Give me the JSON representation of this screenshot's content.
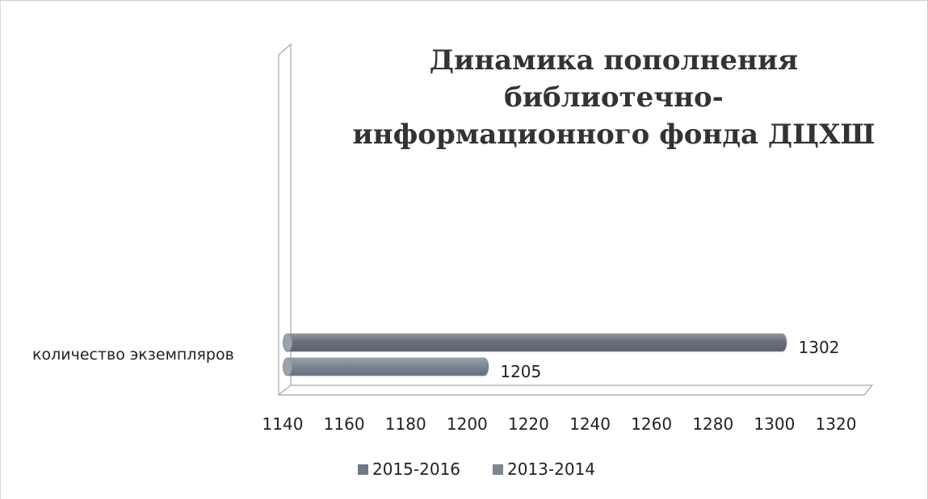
{
  "chart_data": {
    "type": "bar",
    "orientation": "horizontal",
    "title": "Динамика пополнения библиотечно-информационного фонда ДЦХШ",
    "categories": [
      "количество экземпляров"
    ],
    "series": [
      {
        "name": "2015-2016",
        "values": [
          1302
        ],
        "color": "#6e7a86"
      },
      {
        "name": "2013-2014",
        "values": [
          1205
        ],
        "color": "#7c8793"
      }
    ],
    "xlim": [
      1140,
      1320
    ],
    "xticks": [
      "1140",
      "1160",
      "1180",
      "1200",
      "1220",
      "1240",
      "1260",
      "1280",
      "1300",
      "1320"
    ],
    "data_labels": [
      "1302",
      "1205"
    ],
    "grid": false,
    "legend": "bottom"
  }
}
